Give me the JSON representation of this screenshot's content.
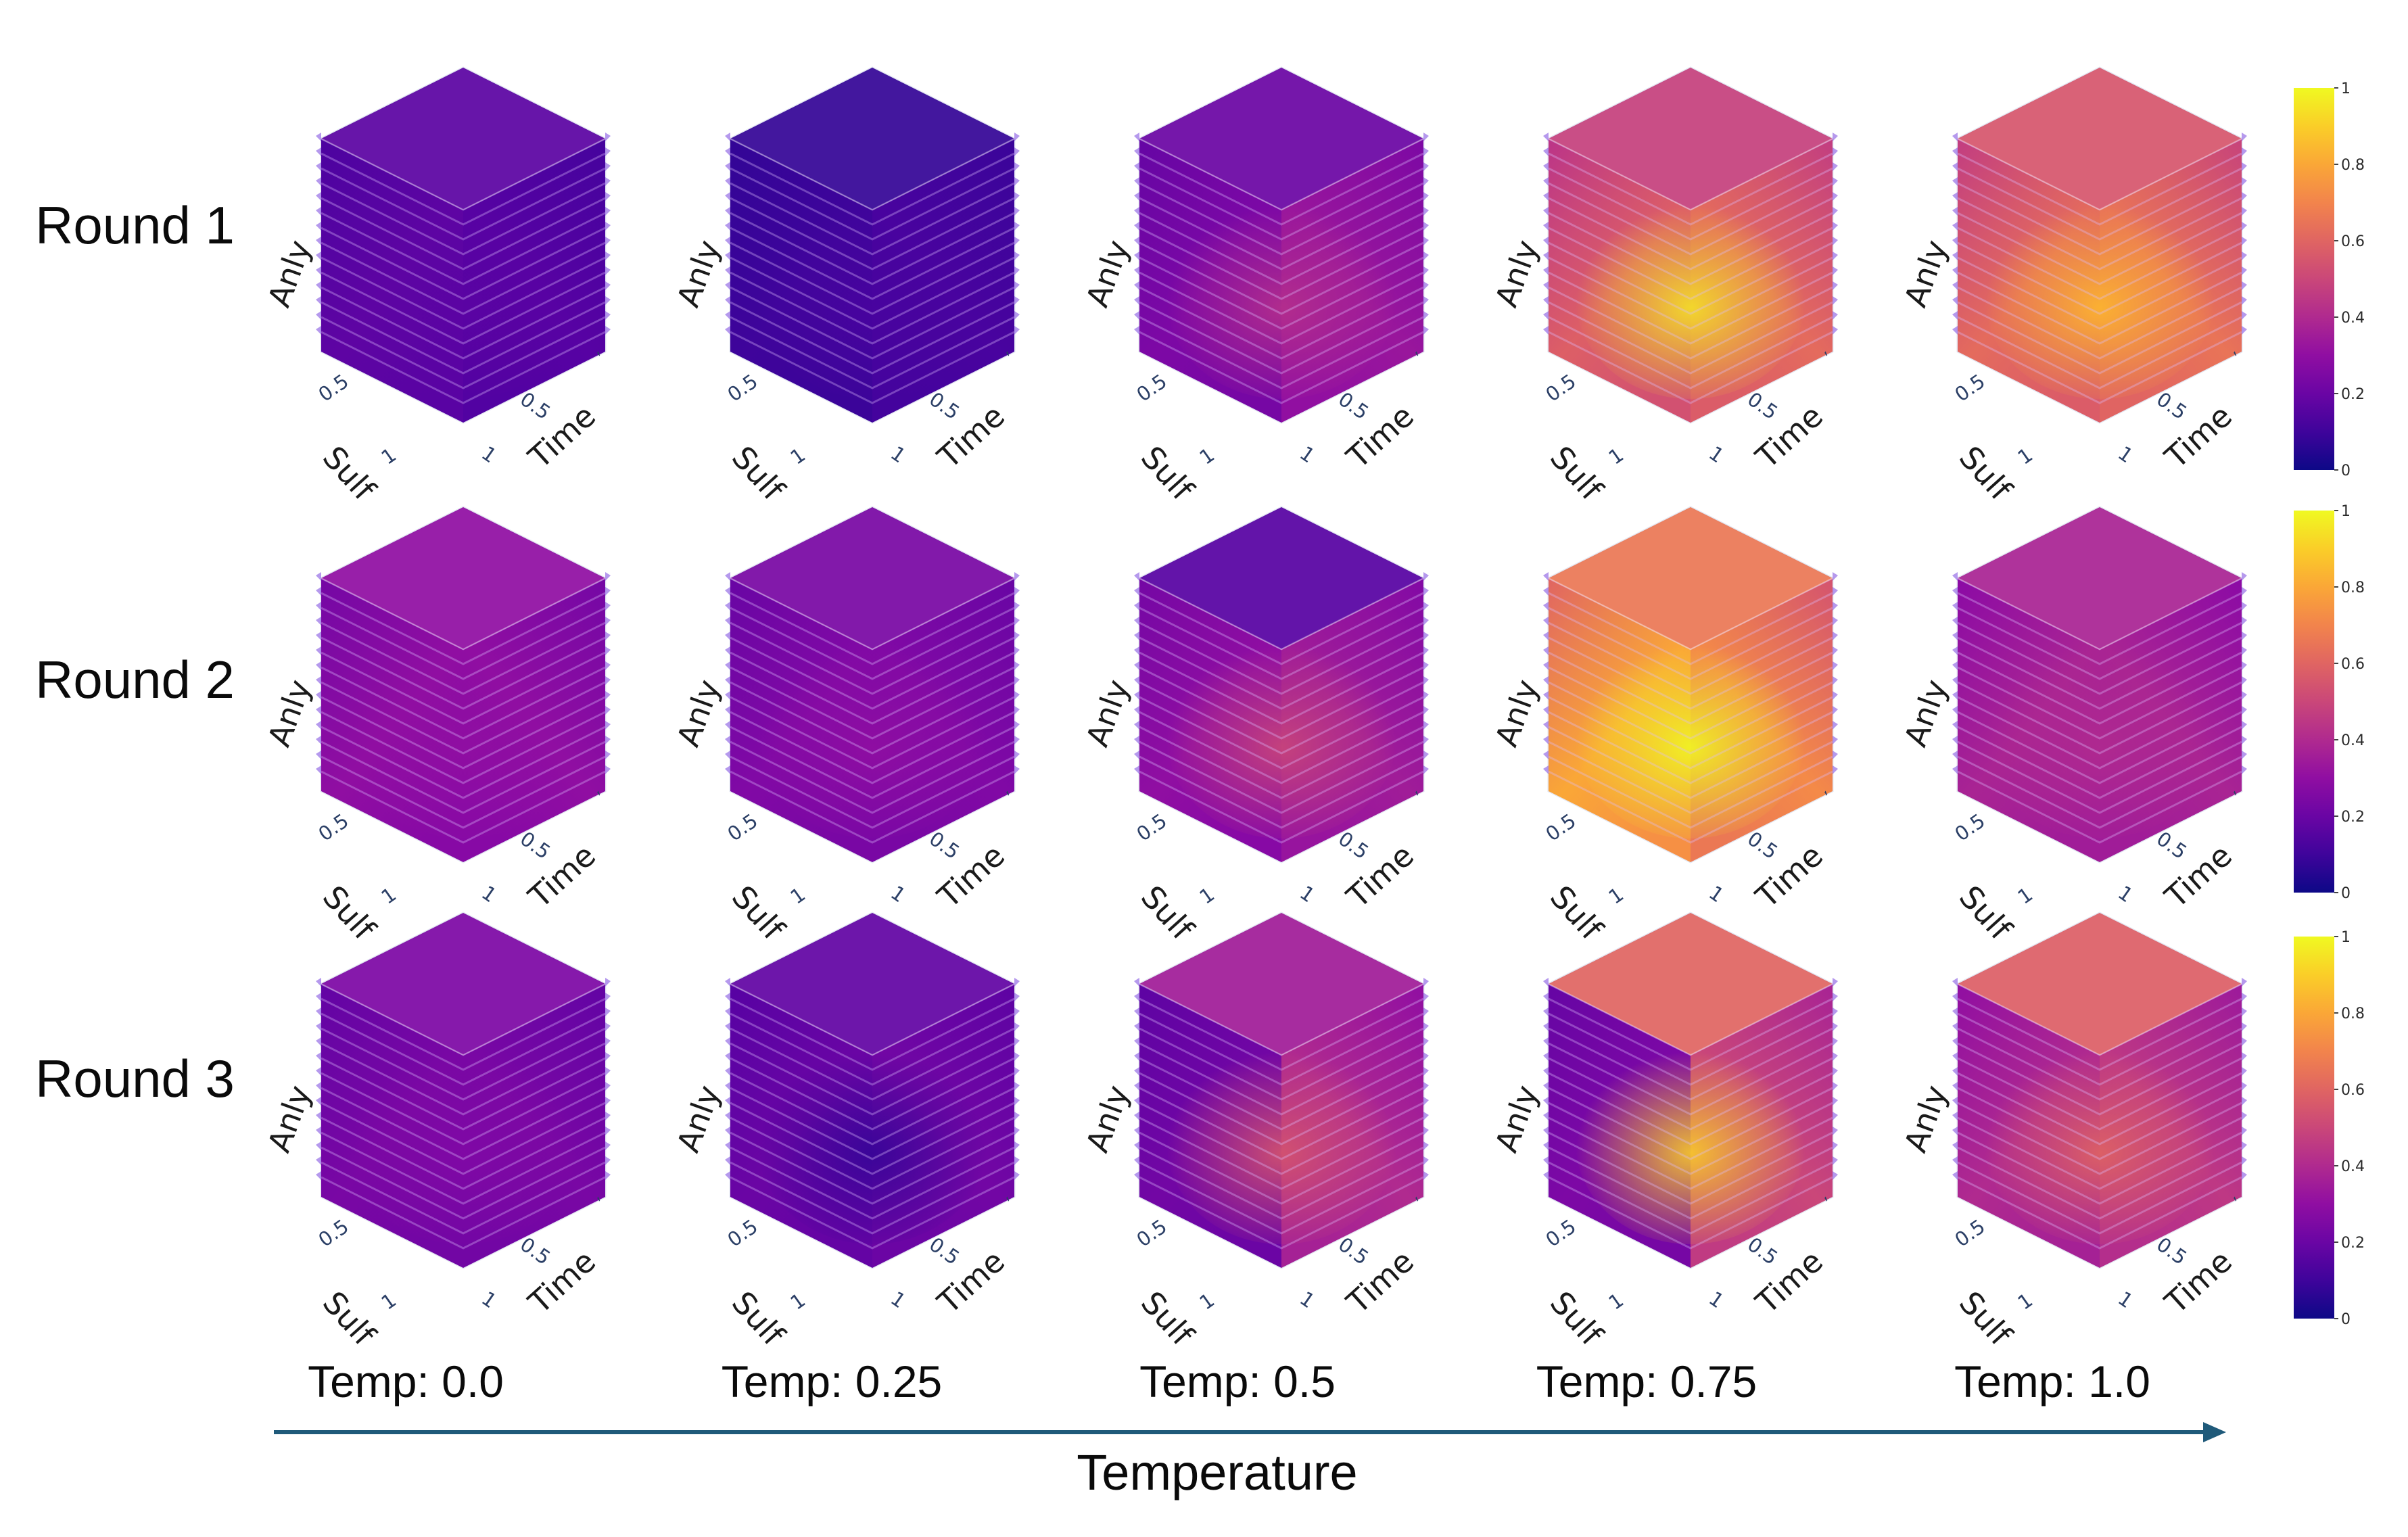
{
  "chart_data": {
    "type": "volume",
    "rows": [
      {
        "label": "Round 1"
      },
      {
        "label": "Round 2"
      },
      {
        "label": "Round 3"
      }
    ],
    "columns": [
      {
        "label": "Temp: 0.0"
      },
      {
        "label": "Temp: 0.25"
      },
      {
        "label": "Temp: 0.5"
      },
      {
        "label": "Temp: 0.75"
      },
      {
        "label": "Temp: 1.0"
      }
    ],
    "axes": {
      "vertical": "Anly",
      "left": "Sulf",
      "right": "Time"
    },
    "tick_labels": {
      "left_mid": "0.5",
      "left_end": "1",
      "right_mid": "0.5",
      "right_end": "1"
    },
    "xlabel": "Temperature",
    "colorbar": {
      "colorscale": "plasma",
      "range": [
        0,
        1
      ],
      "ticks": [
        "0",
        "0.2",
        "0.4",
        "0.6",
        "0.8",
        "1"
      ]
    },
    "panels": [
      [
        {
          "top": 0.16,
          "left": 0.17,
          "right": 0.15,
          "hot": 0.16
        },
        {
          "top": 0.08,
          "left": 0.1,
          "right": 0.12,
          "hot": 0.12
        },
        {
          "top": 0.2,
          "left": 0.25,
          "right": 0.33,
          "hot": 0.42
        },
        {
          "top": 0.48,
          "left": 0.58,
          "right": 0.62,
          "hot": 0.95
        },
        {
          "top": 0.55,
          "left": 0.62,
          "right": 0.65,
          "hot": 0.85
        }
      ],
      [
        {
          "top": 0.3,
          "left": 0.3,
          "right": 0.3,
          "hot": 0.3
        },
        {
          "top": 0.24,
          "left": 0.26,
          "right": 0.26,
          "hot": 0.3
        },
        {
          "top": 0.15,
          "left": 0.3,
          "right": 0.35,
          "hot": 0.5
        },
        {
          "top": 0.66,
          "left": 0.8,
          "right": 0.72,
          "hot": 1.0
        },
        {
          "top": 0.38,
          "left": 0.38,
          "right": 0.38,
          "hot": 0.4
        }
      ],
      [
        {
          "top": 0.25,
          "left": 0.24,
          "right": 0.24,
          "hot": 0.26
        },
        {
          "top": 0.18,
          "left": 0.2,
          "right": 0.22,
          "hot": 0.08
        },
        {
          "top": 0.35,
          "left": 0.22,
          "right": 0.4,
          "hot": 0.55
        },
        {
          "top": 0.6,
          "left": 0.25,
          "right": 0.5,
          "hot": 0.9
        },
        {
          "top": 0.58,
          "left": 0.4,
          "right": 0.45,
          "hot": 0.6
        }
      ]
    ]
  }
}
